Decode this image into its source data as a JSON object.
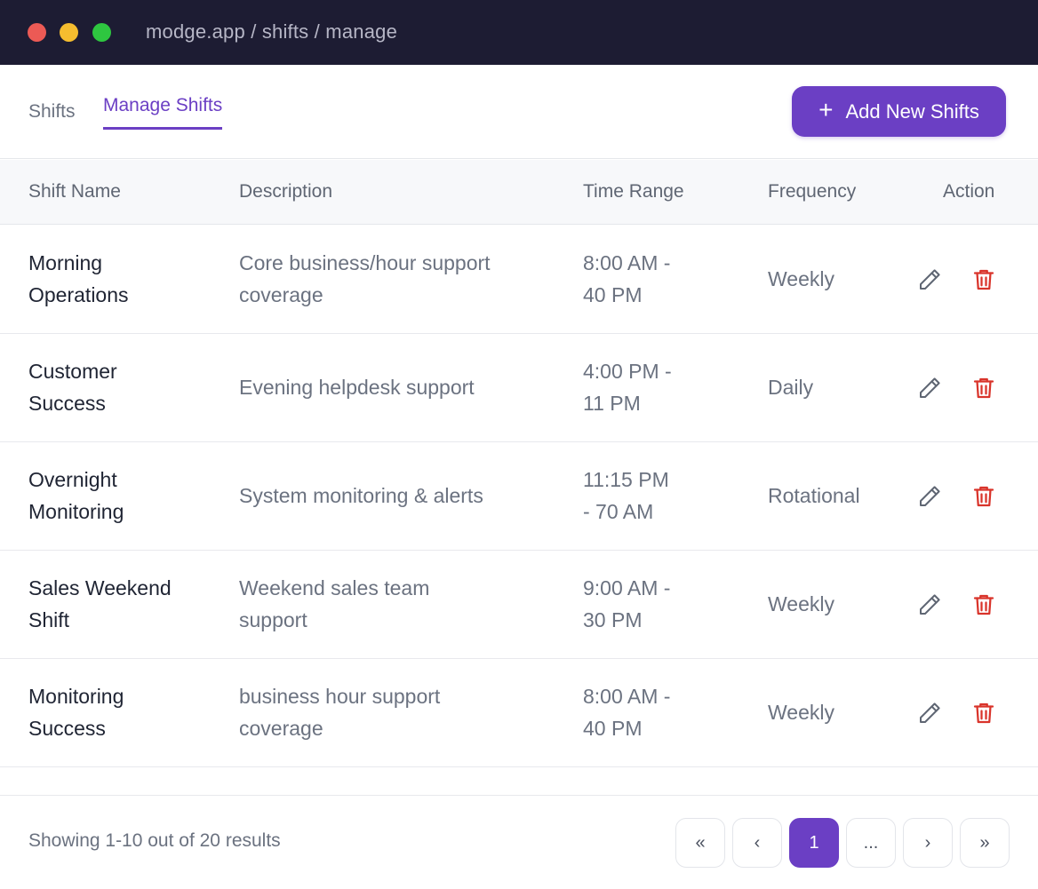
{
  "window": {
    "url": "modge.app / shifts / manage"
  },
  "tabs": {
    "shifts_label": "Shifts",
    "manage_label": "Manage Shifts"
  },
  "toolbar": {
    "add_label": "Add New Shifts",
    "add_icon": "plus-icon"
  },
  "table": {
    "columns": [
      "Shift Name",
      "Description",
      "Time Range",
      "Frequency",
      "Action"
    ],
    "rows": [
      {
        "name": [
          "Morning",
          "Operations"
        ],
        "description": [
          "Core business/hour support",
          "coverage"
        ],
        "time": [
          "8:00 AM -",
          "40 PM"
        ],
        "frequency": "Weekly"
      },
      {
        "name": [
          "Customer",
          "Success"
        ],
        "description": [
          "Evening helpdesk support"
        ],
        "time": [
          "4:00 PM -",
          "11 PM"
        ],
        "frequency": "Daily"
      },
      {
        "name": [
          "Overnight",
          "Monitoring"
        ],
        "description": [
          "System monitoring & alerts"
        ],
        "time": [
          "11:15 PM",
          "- 70 AM"
        ],
        "frequency": "Rotational"
      },
      {
        "name": [
          "Sales Weekend",
          "Shift"
        ],
        "description": [
          "Weekend sales team",
          "support"
        ],
        "time": [
          "9:00 AM -",
          "30 PM"
        ],
        "frequency": "Weekly"
      },
      {
        "name": [
          "Monitoring",
          "Success"
        ],
        "description": [
          "business hour support",
          "coverage"
        ],
        "time": [
          "8:00 AM -",
          "40 PM"
        ],
        "frequency": "Weekly"
      }
    ],
    "action_icons": [
      "pencil-icon",
      "trash-icon"
    ]
  },
  "pagination": {
    "summary": "Showing 1-10 out of 20 results",
    "first": "«",
    "prev": "‹",
    "current": "1",
    "ellipsis": "...",
    "next": "›",
    "last": "»"
  },
  "colors": {
    "accent": "#6b3fc4",
    "danger": "#d9342b",
    "titlebar": "#1d1c33"
  }
}
